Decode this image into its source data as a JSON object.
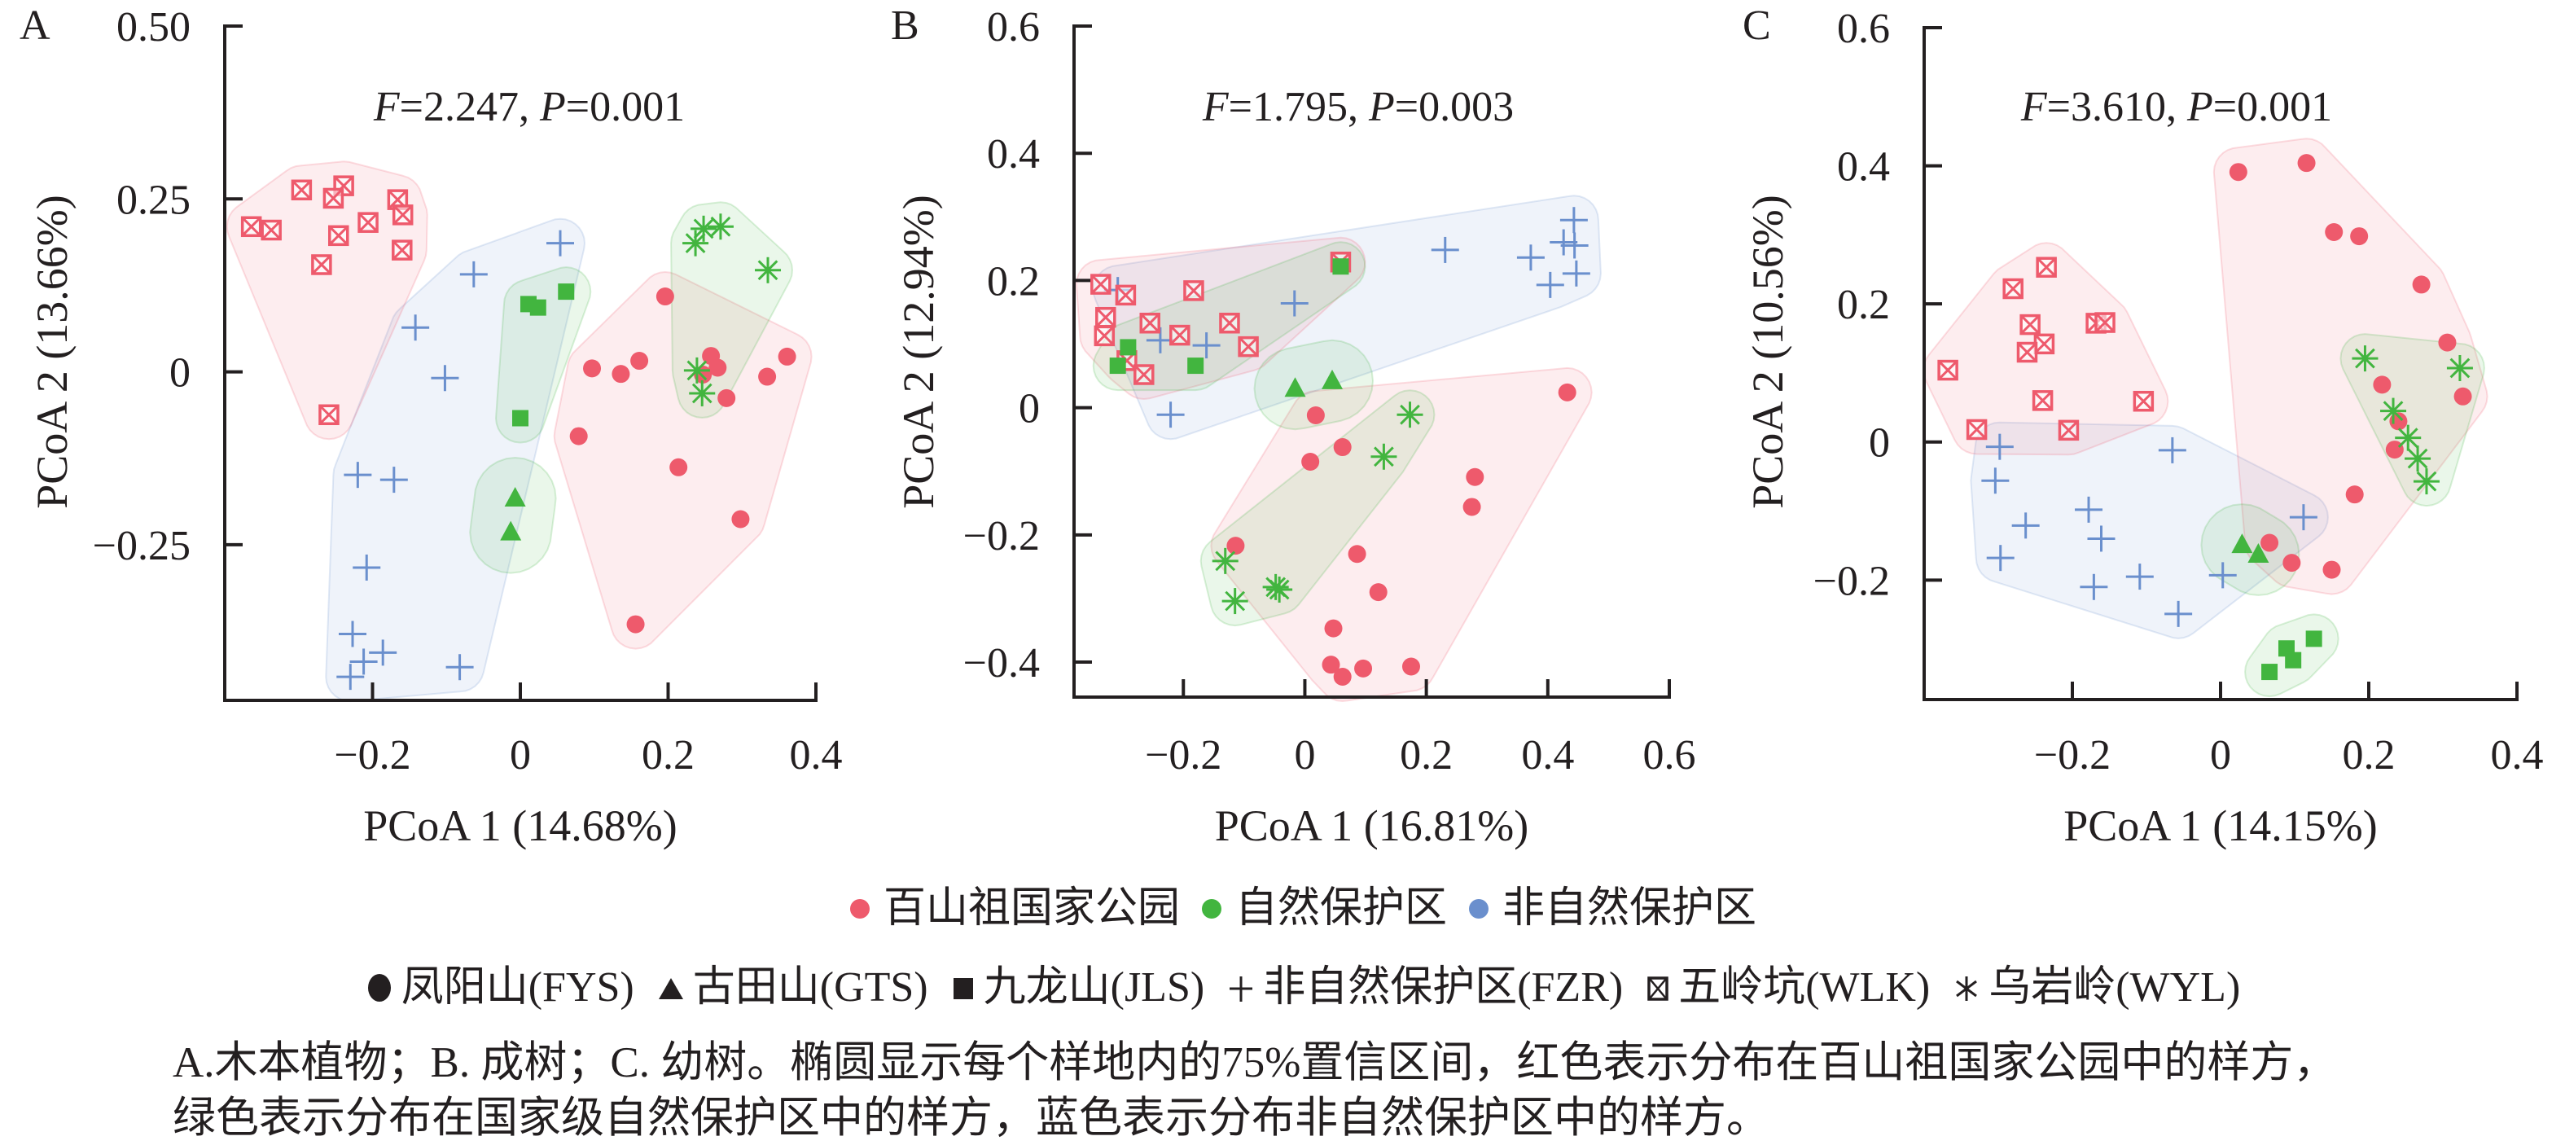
{
  "figure": {
    "legend_regions": {
      "items": [
        {
          "label": "百山祖国家公园",
          "color": "#EE5A6C"
        },
        {
          "label": "自然保护区",
          "color": "#42B53F"
        },
        {
          "label": "非自然保护区",
          "color": "#6A8FCD"
        }
      ]
    },
    "legend_sites": {
      "items": [
        {
          "symbol": "circle",
          "label": "凤阳山(FYS)"
        },
        {
          "symbol": "triangle",
          "label": "古田山(GTS)"
        },
        {
          "symbol": "square",
          "label": "九龙山(JLS)"
        },
        {
          "symbol": "plus",
          "label": "非自然保护区(FZR)"
        },
        {
          "symbol": "boxed-x",
          "label": "五岭坑(WLK)"
        },
        {
          "symbol": "asterisk",
          "label": "乌岩岭(WYL)"
        }
      ]
    },
    "caption": {
      "line1": "A.木本植物；B. 成树；C. 幼树。椭圆显示每个样地内的75%置信区间，红色表示分布在百山祖国家公园中的样方，",
      "line2": "绿色表示分布在国家级自然保护区中的样方，蓝色表示分布非自然保护区中的样方。"
    }
  },
  "chart_data": [
    {
      "type": "scatter",
      "panel_label": "A",
      "title": "",
      "annotation": [
        {
          "text": "F",
          "italic": true
        },
        {
          "text": "=2.247, ",
          "italic": false
        },
        {
          "text": "P",
          "italic": true
        },
        {
          "text": "=0.001",
          "italic": false
        }
      ],
      "xlabel": "PCoA 1 (14.68%)",
      "ylabel": "PCoA 2 (13.66%)",
      "xlim": [
        -0.4,
        0.4
      ],
      "ylim": [
        -0.475,
        0.5
      ],
      "xticks": [
        -0.2,
        0,
        0.2,
        0.4
      ],
      "xtick_labels": [
        "−0.2",
        "0",
        "0.2",
        "0.4"
      ],
      "yticks": [
        -0.25,
        0,
        0.25,
        0.5
      ],
      "ytick_labels": [
        "−0.25",
        "0",
        "0.25",
        "0.50"
      ],
      "grid": false,
      "regions": "75% confidence region per site (shaded)",
      "series": [
        {
          "code": "FZR",
          "site": "非自然保护区",
          "region": "非自然保护区",
          "color": "#6A8FCD",
          "marker": "plus",
          "points": [
            [
              0.054,
              0.186
            ],
            [
              -0.063,
              0.141
            ],
            [
              -0.142,
              0.064
            ],
            [
              -0.102,
              -0.009
            ],
            [
              -0.22,
              -0.149
            ],
            [
              -0.171,
              -0.156
            ],
            [
              -0.208,
              -0.283
            ],
            [
              -0.227,
              -0.379
            ],
            [
              -0.186,
              -0.406
            ],
            [
              -0.212,
              -0.419
            ],
            [
              -0.23,
              -0.441
            ],
            [
              -0.082,
              -0.427
            ]
          ]
        },
        {
          "code": "WLK",
          "site": "五岭坑",
          "region": "百山祖国家公园",
          "color": "#EE5A6C",
          "marker": "boxed-x",
          "points": [
            [
              -0.296,
              0.263
            ],
            [
              -0.239,
              0.269
            ],
            [
              -0.253,
              0.251
            ],
            [
              -0.166,
              0.249
            ],
            [
              -0.159,
              0.227
            ],
            [
              -0.364,
              0.21
            ],
            [
              -0.337,
              0.205
            ],
            [
              -0.206,
              0.216
            ],
            [
              -0.246,
              0.197
            ],
            [
              -0.16,
              0.176
            ],
            [
              -0.269,
              0.155
            ],
            [
              -0.259,
              -0.062
            ]
          ]
        },
        {
          "code": "FYS",
          "site": "凤阳山",
          "region": "百山祖国家公园",
          "color": "#EE5A6C",
          "marker": "circle",
          "points": [
            [
              0.196,
              0.109
            ],
            [
              0.097,
              0.005
            ],
            [
              0.136,
              -0.003
            ],
            [
              0.161,
              0.016
            ],
            [
              0.258,
              0.023
            ],
            [
              0.267,
              0.006
            ],
            [
              0.247,
              -0.004
            ],
            [
              0.279,
              -0.038
            ],
            [
              0.334,
              -0.007
            ],
            [
              0.361,
              0.022
            ],
            [
              0.079,
              -0.093
            ],
            [
              0.214,
              -0.138
            ],
            [
              0.298,
              -0.213
            ],
            [
              0.156,
              -0.365
            ]
          ]
        },
        {
          "code": "GTS",
          "site": "古田山",
          "region": "自然保护区",
          "color": "#42B53F",
          "marker": "triangle",
          "points": [
            [
              -0.007,
              -0.183
            ],
            [
              -0.013,
              -0.232
            ]
          ]
        },
        {
          "code": "JLS",
          "site": "九龙山",
          "region": "自然保护区",
          "color": "#42B53F",
          "marker": "square",
          "points": [
            [
              0.011,
              0.098
            ],
            [
              0.024,
              0.093
            ],
            [
              0.062,
              0.116
            ],
            [
              0.0,
              -0.067
            ]
          ]
        },
        {
          "code": "WYL",
          "site": "乌岩岭",
          "region": "自然保护区",
          "color": "#42B53F",
          "marker": "asterisk",
          "points": [
            [
              0.248,
              0.207
            ],
            [
              0.271,
              0.21
            ],
            [
              0.237,
              0.186
            ],
            [
              0.335,
              0.147
            ],
            [
              0.239,
              0.002
            ],
            [
              0.246,
              -0.031
            ]
          ]
        }
      ]
    },
    {
      "type": "scatter",
      "panel_label": "B",
      "title": "",
      "annotation": [
        {
          "text": "F",
          "italic": true
        },
        {
          "text": "=1.795, ",
          "italic": false
        },
        {
          "text": "P",
          "italic": true
        },
        {
          "text": "=0.003",
          "italic": false
        }
      ],
      "xlabel": "PCoA 1 (16.81%)",
      "ylabel": "PCoA 2 (12.94%)",
      "xlim": [
        -0.38,
        0.6
      ],
      "ylim": [
        -0.455,
        0.6
      ],
      "xticks": [
        -0.2,
        0,
        0.2,
        0.4,
        0.6
      ],
      "xtick_labels": [
        "−0.2",
        "0",
        "0.2",
        "0.4",
        "0.6"
      ],
      "yticks": [
        -0.4,
        -0.2,
        0,
        0.2,
        0.4,
        0.6
      ],
      "ytick_labels": [
        "−0.4",
        "−0.2",
        "0",
        "0.2",
        "0.4",
        "0.6"
      ],
      "grid": false,
      "regions": "75% confidence region per site (shaded)",
      "series": [
        {
          "code": "FZR",
          "site": "非自然保护区",
          "region": "非自然保护区",
          "color": "#6A8FCD",
          "marker": "plus",
          "points": [
            [
              -0.308,
              0.185
            ],
            [
              -0.238,
              0.106
            ],
            [
              -0.162,
              0.098
            ],
            [
              -0.017,
              0.164
            ],
            [
              -0.221,
              -0.011
            ],
            [
              0.231,
              0.248
            ],
            [
              0.443,
              0.295
            ],
            [
              0.426,
              0.26
            ],
            [
              0.444,
              0.255
            ],
            [
              0.372,
              0.236
            ],
            [
              0.447,
              0.211
            ],
            [
              0.404,
              0.193
            ]
          ]
        },
        {
          "code": "WLK",
          "site": "五岭坑",
          "region": "百山祖国家公园",
          "color": "#EE5A6C",
          "marker": "boxed-x",
          "points": [
            [
              -0.336,
              0.194
            ],
            [
              -0.295,
              0.177
            ],
            [
              -0.183,
              0.184
            ],
            [
              -0.328,
              0.142
            ],
            [
              -0.255,
              0.133
            ],
            [
              -0.33,
              0.113
            ],
            [
              -0.206,
              0.114
            ],
            [
              -0.124,
              0.133
            ],
            [
              -0.093,
              0.096
            ],
            [
              -0.293,
              0.074
            ],
            [
              -0.265,
              0.052
            ],
            [
              0.059,
              0.229
            ]
          ]
        },
        {
          "code": "FYS",
          "site": "凤阳山",
          "region": "百山祖国家公园",
          "color": "#EE5A6C",
          "marker": "circle",
          "points": [
            [
              0.432,
              0.024
            ],
            [
              0.018,
              -0.012
            ],
            [
              0.062,
              -0.062
            ],
            [
              0.009,
              -0.085
            ],
            [
              0.28,
              -0.109
            ],
            [
              0.275,
              -0.156
            ],
            [
              -0.114,
              -0.217
            ],
            [
              0.086,
              -0.23
            ],
            [
              0.121,
              -0.29
            ],
            [
              0.047,
              -0.347
            ],
            [
              0.043,
              -0.404
            ],
            [
              0.062,
              -0.423
            ],
            [
              0.096,
              -0.41
            ],
            [
              0.175,
              -0.407
            ]
          ]
        },
        {
          "code": "GTS",
          "site": "古田山",
          "region": "自然保护区",
          "color": "#42B53F",
          "marker": "triangle",
          "points": [
            [
              -0.016,
              0.03
            ],
            [
              0.045,
              0.042
            ]
          ]
        },
        {
          "code": "JLS",
          "site": "九龙山",
          "region": "自然保护区",
          "color": "#42B53F",
          "marker": "square",
          "points": [
            [
              -0.291,
              0.095
            ],
            [
              -0.308,
              0.066
            ],
            [
              -0.18,
              0.066
            ],
            [
              0.059,
              0.222
            ]
          ]
        },
        {
          "code": "WYL",
          "site": "乌岩岭",
          "region": "自然保护区",
          "color": "#42B53F",
          "marker": "asterisk",
          "points": [
            [
              0.173,
              -0.011
            ],
            [
              0.13,
              -0.077
            ],
            [
              -0.131,
              -0.241
            ],
            [
              -0.115,
              -0.304
            ],
            [
              -0.048,
              -0.282
            ],
            [
              -0.042,
              -0.286
            ]
          ]
        }
      ]
    },
    {
      "type": "scatter",
      "panel_label": "C",
      "title": "",
      "annotation": [
        {
          "text": "F",
          "italic": true
        },
        {
          "text": "=3.610, ",
          "italic": false
        },
        {
          "text": "P",
          "italic": true
        },
        {
          "text": "=0.001",
          "italic": false
        }
      ],
      "xlabel": "PCoA 1 (14.15%)",
      "ylabel": "PCoA 2 (10.56%)",
      "xlim": [
        -0.4,
        0.4
      ],
      "ylim": [
        -0.373,
        0.6
      ],
      "xticks": [
        -0.2,
        0,
        0.2,
        0.4
      ],
      "xtick_labels": [
        "−0.2",
        "0",
        "0.2",
        "0.4"
      ],
      "yticks": [
        -0.2,
        0,
        0.2,
        0.4,
        0.6
      ],
      "ytick_labels": [
        "−0.2",
        "0",
        "0.2",
        "0.4",
        "0.6"
      ],
      "grid": false,
      "regions": "75% confidence region per site (shaded)",
      "series": [
        {
          "code": "FZR",
          "site": "非自然保护区",
          "region": "非自然保护区",
          "color": "#6A8FCD",
          "marker": "plus",
          "points": [
            [
              -0.298,
              -0.007
            ],
            [
              -0.065,
              -0.012
            ],
            [
              -0.304,
              -0.056
            ],
            [
              -0.178,
              -0.098
            ],
            [
              -0.263,
              -0.121
            ],
            [
              -0.161,
              -0.14
            ],
            [
              -0.297,
              -0.168
            ],
            [
              0.112,
              -0.109
            ],
            [
              -0.171,
              -0.21
            ],
            [
              -0.109,
              -0.195
            ],
            [
              0.003,
              -0.193
            ],
            [
              -0.057,
              -0.249
            ]
          ]
        },
        {
          "code": "WLK",
          "site": "五岭坑",
          "region": "百山祖国家公园",
          "color": "#EE5A6C",
          "marker": "boxed-x",
          "points": [
            [
              -0.235,
              0.253
            ],
            [
              -0.28,
              0.222
            ],
            [
              -0.257,
              0.17
            ],
            [
              -0.168,
              0.172
            ],
            [
              -0.156,
              0.173
            ],
            [
              -0.238,
              0.142
            ],
            [
              -0.261,
              0.13
            ],
            [
              -0.368,
              0.104
            ],
            [
              -0.24,
              0.06
            ],
            [
              -0.104,
              0.059
            ],
            [
              -0.329,
              0.018
            ],
            [
              -0.205,
              0.017
            ]
          ]
        },
        {
          "code": "FYS",
          "site": "凤阳山",
          "region": "百山祖国家公园",
          "color": "#EE5A6C",
          "marker": "circle",
          "points": [
            [
              0.024,
              0.391
            ],
            [
              0.116,
              0.404
            ],
            [
              0.153,
              0.304
            ],
            [
              0.187,
              0.298
            ],
            [
              0.271,
              0.228
            ],
            [
              0.306,
              0.144
            ],
            [
              0.218,
              0.083
            ],
            [
              0.327,
              0.066
            ],
            [
              0.24,
              0.03
            ],
            [
              0.235,
              -0.011
            ],
            [
              0.181,
              -0.076
            ],
            [
              0.066,
              -0.146
            ],
            [
              0.096,
              -0.175
            ],
            [
              0.15,
              -0.185
            ]
          ]
        },
        {
          "code": "GTS",
          "site": "古田山",
          "region": "自然保护区",
          "color": "#42B53F",
          "marker": "triangle",
          "points": [
            [
              0.029,
              -0.149
            ],
            [
              0.051,
              -0.163
            ]
          ]
        },
        {
          "code": "JLS",
          "site": "九龙山",
          "region": "自然保护区",
          "color": "#42B53F",
          "marker": "square",
          "points": [
            [
              0.126,
              -0.285
            ],
            [
              0.089,
              -0.299
            ],
            [
              0.098,
              -0.316
            ],
            [
              0.066,
              -0.333
            ]
          ]
        },
        {
          "code": "WYL",
          "site": "乌岩岭",
          "region": "自然保护区",
          "color": "#42B53F",
          "marker": "asterisk",
          "points": [
            [
              0.195,
              0.121
            ],
            [
              0.323,
              0.107
            ],
            [
              0.233,
              0.045
            ],
            [
              0.253,
              0.006
            ],
            [
              0.266,
              -0.024
            ],
            [
              0.278,
              -0.057
            ]
          ]
        }
      ]
    }
  ]
}
